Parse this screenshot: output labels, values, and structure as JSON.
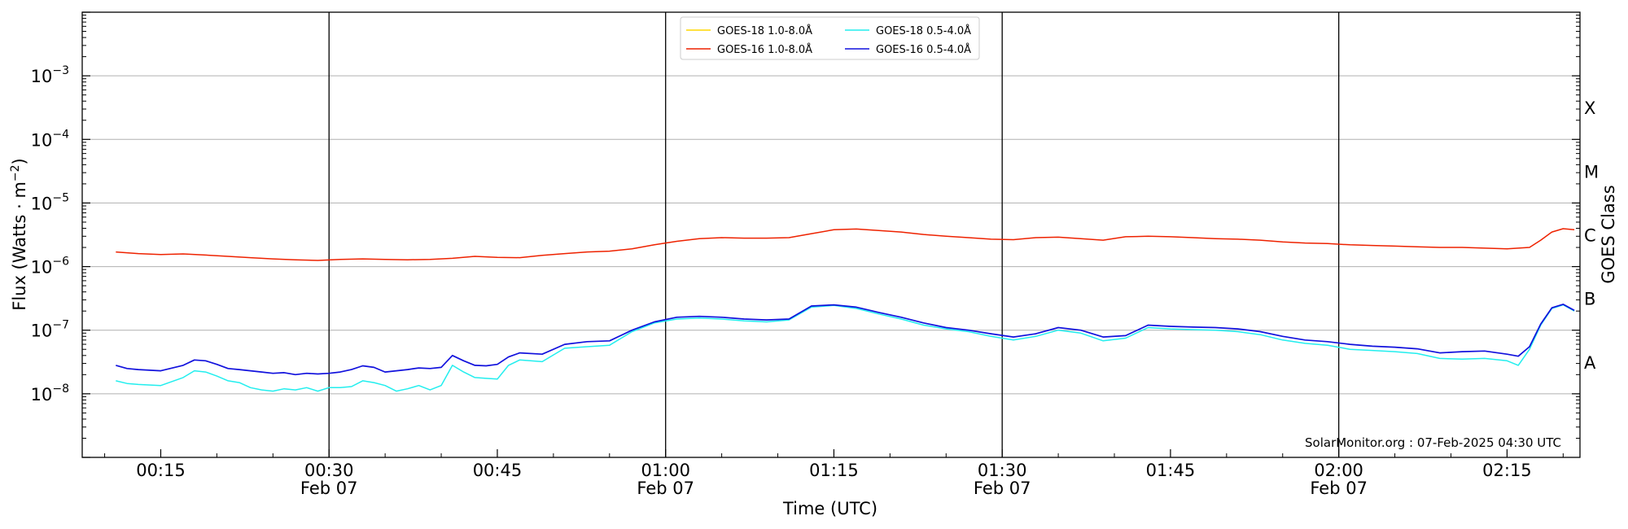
{
  "chart_data": {
    "type": "line",
    "xlabel": "Time (UTC)",
    "ylabel": "Flux (Watts · m",
    "ylabel_sup": "−2",
    "ylabel_close": ")",
    "right_label": "GOES Class",
    "y_scale": "log",
    "ylim": [
      1e-09,
      0.01
    ],
    "xlim_minutes": [
      8,
      227
    ],
    "grid": "horizontal at decades, vertical at half-hour majors",
    "legend_position": "top-center",
    "credit": "SolarMonitor.org : 07-Feb-2025 04:30 UTC",
    "y_ticks": [
      {
        "exp": -8,
        "label": "10",
        "sup": "−8"
      },
      {
        "exp": -7,
        "label": "10",
        "sup": "−7"
      },
      {
        "exp": -6,
        "label": "10",
        "sup": "−6"
      },
      {
        "exp": -5,
        "label": "10",
        "sup": "−5"
      },
      {
        "exp": -4,
        "label": "10",
        "sup": "−4"
      },
      {
        "exp": -3,
        "label": "10",
        "sup": "−3"
      }
    ],
    "x_ticks": [
      {
        "t": 15,
        "time": "00:15",
        "date": ""
      },
      {
        "t": 30,
        "time": "00:30",
        "date": "Feb 07"
      },
      {
        "t": 45,
        "time": "00:45",
        "date": ""
      },
      {
        "t": 60,
        "time": "01:00",
        "date": "Feb 07"
      },
      {
        "t": 75,
        "time": "01:15",
        "date": ""
      },
      {
        "t": 90,
        "time": "01:30",
        "date": "Feb 07"
      },
      {
        "t": 105,
        "time": "01:45",
        "date": ""
      },
      {
        "t": 120,
        "time": "02:00",
        "date": "Feb 07"
      },
      {
        "t": 135,
        "time": "02:15",
        "date": ""
      }
    ],
    "major_vlines": [
      30,
      60,
      90,
      120
    ],
    "goes_classes": [
      {
        "label": "A",
        "exp": -7.5
      },
      {
        "label": "B",
        "exp": -6.5
      },
      {
        "label": "C",
        "exp": -5.5
      },
      {
        "label": "M",
        "exp": -4.5
      },
      {
        "label": "X",
        "exp": -3.5
      }
    ],
    "x_units": "minutes after 00:00 UTC, 07-Feb-2025",
    "series": [
      {
        "name": "GOES-18 1.0-8.0Å",
        "color": "#ffd700",
        "x": [],
        "y": []
      },
      {
        "name": "GOES-16 1.0-8.0Å",
        "color": "#ee2200",
        "x": [
          11,
          13,
          15,
          17,
          19,
          21,
          23,
          25,
          27,
          29,
          31,
          33,
          35,
          37,
          39,
          41,
          43,
          45,
          47,
          49,
          51,
          53,
          55,
          57,
          59,
          61,
          63,
          65,
          67,
          69,
          71,
          73,
          75,
          77,
          79,
          81,
          83,
          85,
          87,
          89,
          91,
          93,
          95,
          97,
          99,
          101,
          103,
          105,
          107,
          109,
          111,
          113,
          115,
          117,
          119,
          121,
          123,
          125,
          127,
          129,
          131,
          133,
          135,
          137,
          138,
          139,
          140,
          141
        ],
        "y": [
          1.7e-06,
          1.6e-06,
          1.55e-06,
          1.58e-06,
          1.52e-06,
          1.45e-06,
          1.38e-06,
          1.32e-06,
          1.28e-06,
          1.25e-06,
          1.3e-06,
          1.32e-06,
          1.3e-06,
          1.28e-06,
          1.3e-06,
          1.35e-06,
          1.45e-06,
          1.4e-06,
          1.38e-06,
          1.5e-06,
          1.6e-06,
          1.7e-06,
          1.75e-06,
          1.9e-06,
          2.2e-06,
          2.5e-06,
          2.75e-06,
          2.85e-06,
          2.8e-06,
          2.8e-06,
          2.85e-06,
          3.3e-06,
          3.8e-06,
          3.9e-06,
          3.7e-06,
          3.5e-06,
          3.2e-06,
          3e-06,
          2.85e-06,
          2.7e-06,
          2.65e-06,
          2.85e-06,
          2.9e-06,
          2.75e-06,
          2.6e-06,
          2.95e-06,
          3e-06,
          2.95e-06,
          2.85e-06,
          2.75e-06,
          2.7e-06,
          2.6e-06,
          2.45e-06,
          2.35e-06,
          2.3e-06,
          2.2e-06,
          2.15e-06,
          2.1e-06,
          2.05e-06,
          2e-06,
          2e-06,
          1.95e-06,
          1.9e-06,
          2e-06,
          2.6e-06,
          3.5e-06,
          3.95e-06,
          3.8e-06
        ]
      },
      {
        "name": "GOES-18 0.5-4.0Å",
        "color": "#22eeee",
        "x": [
          11,
          12,
          13,
          15,
          17,
          18,
          19,
          20,
          21,
          22,
          23,
          24,
          25,
          26,
          27,
          28,
          29,
          30,
          31,
          32,
          33,
          34,
          35,
          36,
          37,
          38,
          39,
          40,
          41,
          42,
          43,
          44,
          45,
          46,
          47,
          49,
          51,
          53,
          55,
          57,
          59,
          61,
          63,
          65,
          67,
          69,
          71,
          73,
          75,
          77,
          79,
          81,
          83,
          85,
          87,
          89,
          91,
          93,
          95,
          97,
          99,
          101,
          103,
          105,
          107,
          109,
          111,
          113,
          115,
          117,
          119,
          121,
          123,
          125,
          127,
          129,
          131,
          133,
          135,
          136,
          137,
          138,
          139,
          140,
          141
        ],
        "y": [
          1.6e-08,
          1.45e-08,
          1.4e-08,
          1.35e-08,
          1.8e-08,
          2.3e-08,
          2.2e-08,
          1.9e-08,
          1.6e-08,
          1.5e-08,
          1.25e-08,
          1.15e-08,
          1.1e-08,
          1.2e-08,
          1.15e-08,
          1.25e-08,
          1.1e-08,
          1.25e-08,
          1.25e-08,
          1.3e-08,
          1.6e-08,
          1.5e-08,
          1.35e-08,
          1.1e-08,
          1.2e-08,
          1.35e-08,
          1.15e-08,
          1.35e-08,
          2.8e-08,
          2.2e-08,
          1.8e-08,
          1.75e-08,
          1.7e-08,
          2.8e-08,
          3.4e-08,
          3.2e-08,
          5.2e-08,
          5.5e-08,
          5.8e-08,
          9.5e-08,
          1.3e-07,
          1.5e-07,
          1.55e-07,
          1.5e-07,
          1.4e-07,
          1.35e-07,
          1.45e-07,
          2.3e-07,
          2.45e-07,
          2.2e-07,
          1.8e-07,
          1.5e-07,
          1.2e-07,
          1.05e-07,
          9.5e-08,
          8e-08,
          7e-08,
          8e-08,
          1e-07,
          9e-08,
          6.8e-08,
          7.5e-08,
          1.1e-07,
          1.05e-07,
          1.02e-07,
          1e-07,
          9.5e-08,
          8.5e-08,
          7e-08,
          6.2e-08,
          5.8e-08,
          5e-08,
          4.8e-08,
          4.6e-08,
          4.3e-08,
          3.6e-08,
          3.5e-08,
          3.6e-08,
          3.3e-08,
          2.8e-08,
          5e-08,
          1.2e-07,
          2.2e-07,
          2.5e-07,
          2e-07
        ]
      },
      {
        "name": "GOES-16 0.5-4.0Å",
        "color": "#1111dd",
        "x": [
          11,
          12,
          13,
          15,
          17,
          18,
          19,
          20,
          21,
          22,
          23,
          24,
          25,
          26,
          27,
          28,
          29,
          30,
          31,
          32,
          33,
          34,
          35,
          36,
          37,
          38,
          39,
          40,
          41,
          42,
          43,
          44,
          45,
          46,
          47,
          49,
          51,
          53,
          55,
          57,
          59,
          61,
          63,
          65,
          67,
          69,
          71,
          73,
          75,
          77,
          79,
          81,
          83,
          85,
          87,
          89,
          91,
          93,
          95,
          97,
          99,
          101,
          103,
          105,
          107,
          109,
          111,
          113,
          115,
          117,
          119,
          121,
          123,
          125,
          127,
          129,
          131,
          133,
          135,
          136,
          137,
          138,
          139,
          140,
          141
        ],
        "y": [
          2.8e-08,
          2.5e-08,
          2.4e-08,
          2.3e-08,
          2.8e-08,
          3.4e-08,
          3.3e-08,
          2.9e-08,
          2.5e-08,
          2.4e-08,
          2.3e-08,
          2.2e-08,
          2.1e-08,
          2.15e-08,
          2e-08,
          2.1e-08,
          2.05e-08,
          2.1e-08,
          2.2e-08,
          2.4e-08,
          2.75e-08,
          2.6e-08,
          2.2e-08,
          2.3e-08,
          2.4e-08,
          2.55e-08,
          2.5e-08,
          2.6e-08,
          4e-08,
          3.3e-08,
          2.8e-08,
          2.75e-08,
          2.9e-08,
          3.8e-08,
          4.4e-08,
          4.2e-08,
          6e-08,
          6.6e-08,
          6.8e-08,
          1e-07,
          1.35e-07,
          1.6e-07,
          1.65e-07,
          1.6e-07,
          1.5e-07,
          1.45e-07,
          1.5e-07,
          2.4e-07,
          2.5e-07,
          2.3e-07,
          1.9e-07,
          1.6e-07,
          1.3e-07,
          1.1e-07,
          1e-07,
          8.8e-08,
          7.8e-08,
          8.8e-08,
          1.1e-07,
          1e-07,
          7.8e-08,
          8.2e-08,
          1.2e-07,
          1.15e-07,
          1.12e-07,
          1.1e-07,
          1.05e-07,
          9.5e-08,
          8e-08,
          7e-08,
          6.6e-08,
          6e-08,
          5.6e-08,
          5.4e-08,
          5.1e-08,
          4.4e-08,
          4.6e-08,
          4.7e-08,
          4.2e-08,
          3.9e-08,
          5.5e-08,
          1.25e-07,
          2.25e-07,
          2.55e-07,
          2.05e-07
        ]
      }
    ]
  }
}
